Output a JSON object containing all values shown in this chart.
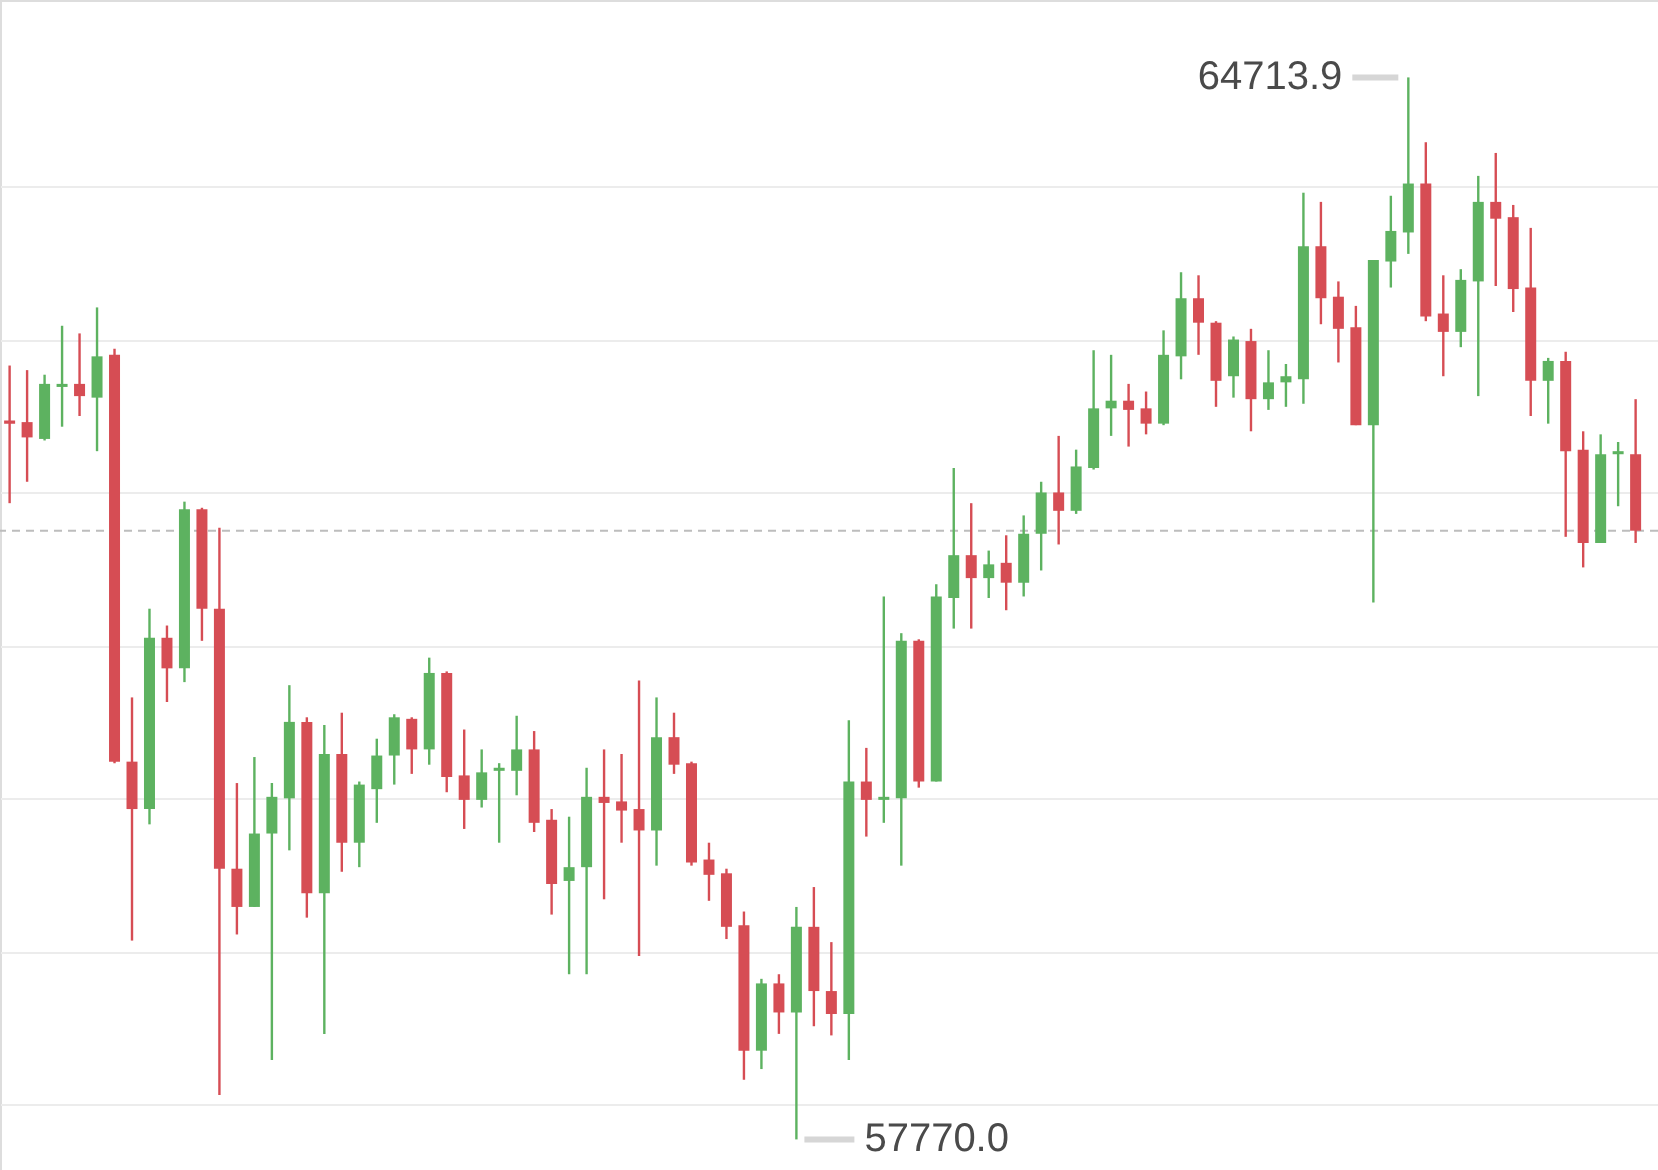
{
  "chart_data": {
    "type": "candlestick",
    "categories": [
      null,
      null,
      null,
      null,
      null,
      null,
      null,
      null,
      null,
      null,
      null,
      null,
      null,
      null,
      null,
      null,
      null,
      null,
      null,
      null,
      null,
      null,
      null,
      null,
      null,
      null,
      null,
      null,
      null,
      null,
      null,
      null,
      null,
      null,
      null,
      null,
      null,
      null,
      null,
      null,
      null,
      null,
      null,
      null,
      null,
      null,
      null,
      null,
      null,
      null,
      null,
      null,
      null,
      null,
      null,
      null,
      null,
      null,
      null,
      null,
      null,
      null,
      null,
      null,
      null,
      null,
      null,
      null,
      null,
      null,
      null,
      null,
      null,
      null,
      null,
      null,
      null,
      null,
      null,
      null,
      null,
      null,
      null,
      null,
      null,
      null,
      null,
      null,
      null,
      null,
      null,
      null,
      null,
      null
    ],
    "ohlc": [
      [
        62470,
        62830,
        61930,
        62450
      ],
      [
        62460,
        62800,
        62070,
        62360
      ],
      [
        62350,
        62770,
        62340,
        62710
      ],
      [
        62690,
        63090,
        62430,
        62710
      ],
      [
        62710,
        63040,
        62500,
        62630
      ],
      [
        62620,
        63210,
        62270,
        62890
      ],
      [
        62900,
        62940,
        60230,
        60240
      ],
      [
        60240,
        60660,
        59070,
        59930
      ],
      [
        59930,
        61240,
        59830,
        61050
      ],
      [
        61050,
        61130,
        60630,
        60850
      ],
      [
        60850,
        61940,
        60760,
        61890
      ],
      [
        61890,
        61900,
        61030,
        61240
      ],
      [
        61240,
        61770,
        58060,
        59540
      ],
      [
        59540,
        60100,
        59110,
        59290
      ],
      [
        59290,
        60270,
        59290,
        59770
      ],
      [
        59770,
        60100,
        58290,
        60010
      ],
      [
        60000,
        60740,
        59660,
        60500
      ],
      [
        60500,
        60530,
        59220,
        59380
      ],
      [
        59380,
        60480,
        58460,
        60290
      ],
      [
        60290,
        60560,
        59520,
        59710
      ],
      [
        59710,
        60110,
        59550,
        60090
      ],
      [
        60060,
        60390,
        59840,
        60280
      ],
      [
        60280,
        60550,
        60090,
        60530
      ],
      [
        60520,
        60530,
        60160,
        60320
      ],
      [
        60320,
        60920,
        60220,
        60820
      ],
      [
        60820,
        60830,
        60040,
        60140
      ],
      [
        60150,
        60450,
        59800,
        59990
      ],
      [
        59990,
        60320,
        59940,
        60170
      ],
      [
        60180,
        60230,
        59710,
        60200
      ],
      [
        60180,
        60540,
        60020,
        60320
      ],
      [
        60320,
        60440,
        59780,
        59840
      ],
      [
        59860,
        59930,
        59240,
        59440
      ],
      [
        59460,
        59880,
        58850,
        59550
      ],
      [
        59550,
        60200,
        58850,
        60010
      ],
      [
        60010,
        60320,
        59340,
        59970
      ],
      [
        59980,
        60290,
        59710,
        59920
      ],
      [
        59930,
        60770,
        58970,
        59790
      ],
      [
        59790,
        60660,
        59560,
        60400
      ],
      [
        60400,
        60560,
        60160,
        60220
      ],
      [
        60230,
        60240,
        59560,
        59580
      ],
      [
        59600,
        59710,
        59330,
        59500
      ],
      [
        59510,
        59540,
        59080,
        59160
      ],
      [
        59170,
        59260,
        58160,
        58350
      ],
      [
        58350,
        58820,
        58230,
        58790
      ],
      [
        58790,
        58850,
        58460,
        58600
      ],
      [
        58600,
        59290,
        57770.0,
        59160
      ],
      [
        59160,
        59420,
        58510,
        58740
      ],
      [
        58740,
        59060,
        58450,
        58590
      ],
      [
        58590,
        60510,
        58290,
        60110
      ],
      [
        60110,
        60330,
        59750,
        59990
      ],
      [
        59990,
        61320,
        59840,
        60010
      ],
      [
        60000,
        61080,
        59560,
        61030
      ],
      [
        61030,
        61040,
        60070,
        60110
      ],
      [
        60110,
        61400,
        60110,
        61320
      ],
      [
        61310,
        62160,
        61110,
        61590
      ],
      [
        61590,
        61930,
        61110,
        61440
      ],
      [
        61440,
        61620,
        61310,
        61530
      ],
      [
        61540,
        61720,
        61230,
        61410
      ],
      [
        61410,
        61850,
        61320,
        61730
      ],
      [
        61730,
        62070,
        61490,
        62000
      ],
      [
        62000,
        62370,
        61660,
        61880
      ],
      [
        61880,
        62280,
        61860,
        62170
      ],
      [
        62160,
        62930,
        62150,
        62550
      ],
      [
        62550,
        62900,
        62370,
        62600
      ],
      [
        62600,
        62710,
        62300,
        62540
      ],
      [
        62550,
        62660,
        62380,
        62450
      ],
      [
        62450,
        63060,
        62440,
        62900
      ],
      [
        62890,
        63440,
        62740,
        63270
      ],
      [
        63270,
        63420,
        62900,
        63110
      ],
      [
        63110,
        63120,
        62560,
        62730
      ],
      [
        62760,
        63020,
        62620,
        63000
      ],
      [
        62990,
        63070,
        62400,
        62610
      ],
      [
        62610,
        62930,
        62540,
        62720
      ],
      [
        62720,
        62840,
        62560,
        62760
      ],
      [
        62740,
        63960,
        62580,
        63610
      ],
      [
        63610,
        63900,
        63100,
        63270
      ],
      [
        63280,
        63380,
        62850,
        63070
      ],
      [
        63080,
        63220,
        62440,
        62440
      ],
      [
        62440,
        63520,
        61280,
        63520
      ],
      [
        63510,
        63940,
        63340,
        63710
      ],
      [
        63700,
        64713.9,
        63560,
        64020
      ],
      [
        64020,
        64290,
        63120,
        63150
      ],
      [
        63170,
        63420,
        62760,
        63050
      ],
      [
        63050,
        63460,
        62950,
        63390
      ],
      [
        63380,
        64070,
        62630,
        63900
      ],
      [
        63900,
        64220,
        63350,
        63790
      ],
      [
        63800,
        63880,
        63180,
        63330
      ],
      [
        63340,
        63730,
        62500,
        62730
      ],
      [
        62730,
        62880,
        62450,
        62860
      ],
      [
        62860,
        62920,
        61710,
        62270
      ],
      [
        62280,
        62400,
        61510,
        61670
      ],
      [
        61670,
        62380,
        61670,
        62250
      ],
      [
        62250,
        62330,
        61910,
        62270
      ],
      [
        62250,
        62610,
        61670,
        61750
      ]
    ],
    "colors": [
      "#d64d54",
      "#d64d54",
      "#5db260",
      "#5db260",
      "#d64d54",
      "#5db260",
      "#d64d54",
      "#d64d54",
      "#5db260",
      "#d64d54",
      "#5db260",
      "#d64d54",
      "#d64d54",
      "#d64d54",
      "#5db260",
      "#5db260",
      "#5db260",
      "#d64d54",
      "#5db260",
      "#d64d54",
      "#5db260",
      "#5db260",
      "#5db260",
      "#d64d54",
      "#5db260",
      "#d64d54",
      "#d64d54",
      "#5db260",
      "#5db260",
      "#5db260",
      "#d64d54",
      "#d64d54",
      "#5db260",
      "#5db260",
      "#d64d54",
      "#d64d54",
      "#d64d54",
      "#5db260",
      "#d64d54",
      "#d64d54",
      "#d64d54",
      "#d64d54",
      "#d64d54",
      "#5db260",
      "#d64d54",
      "#5db260",
      "#d64d54",
      "#d64d54",
      "#5db260",
      "#d64d54",
      "#5db260",
      "#5db260",
      "#d64d54",
      "#5db260",
      "#5db260",
      "#d64d54",
      "#5db260",
      "#d64d54",
      "#5db260",
      "#5db260",
      "#d64d54",
      "#5db260",
      "#5db260",
      "#5db260",
      "#d64d54",
      "#d64d54",
      "#5db260",
      "#5db260",
      "#d64d54",
      "#d64d54",
      "#5db260",
      "#d64d54",
      "#5db260",
      "#5db260",
      "#5db260",
      "#d64d54",
      "#d64d54",
      "#d64d54",
      "#5db260",
      "#5db260",
      "#5db260",
      "#d64d54",
      "#d64d54",
      "#5db260",
      "#5db260",
      "#d64d54",
      "#d64d54",
      "#d64d54",
      "#5db260",
      "#d64d54",
      "#d64d54",
      "#5db260",
      "#5db260",
      "#d64d54"
    ],
    "ylim": [
      57570,
      65220
    ],
    "yticks": [
      {
        "value": 58000,
        "label": null
      },
      {
        "value": 59000,
        "label": null
      },
      {
        "value": 60000,
        "label": null
      },
      {
        "value": 61000,
        "label": null
      },
      {
        "value": 62000,
        "label": null
      },
      {
        "value": 63000,
        "label": null
      },
      {
        "value": 64000,
        "label": null
      }
    ],
    "grid": "y",
    "ref_lines": [
      {
        "axis": "y",
        "value": 61750,
        "color": "#bdbdbd",
        "line_style": "dashed"
      }
    ],
    "annotations": [
      "64713.9",
      "57770.0"
    ]
  }
}
